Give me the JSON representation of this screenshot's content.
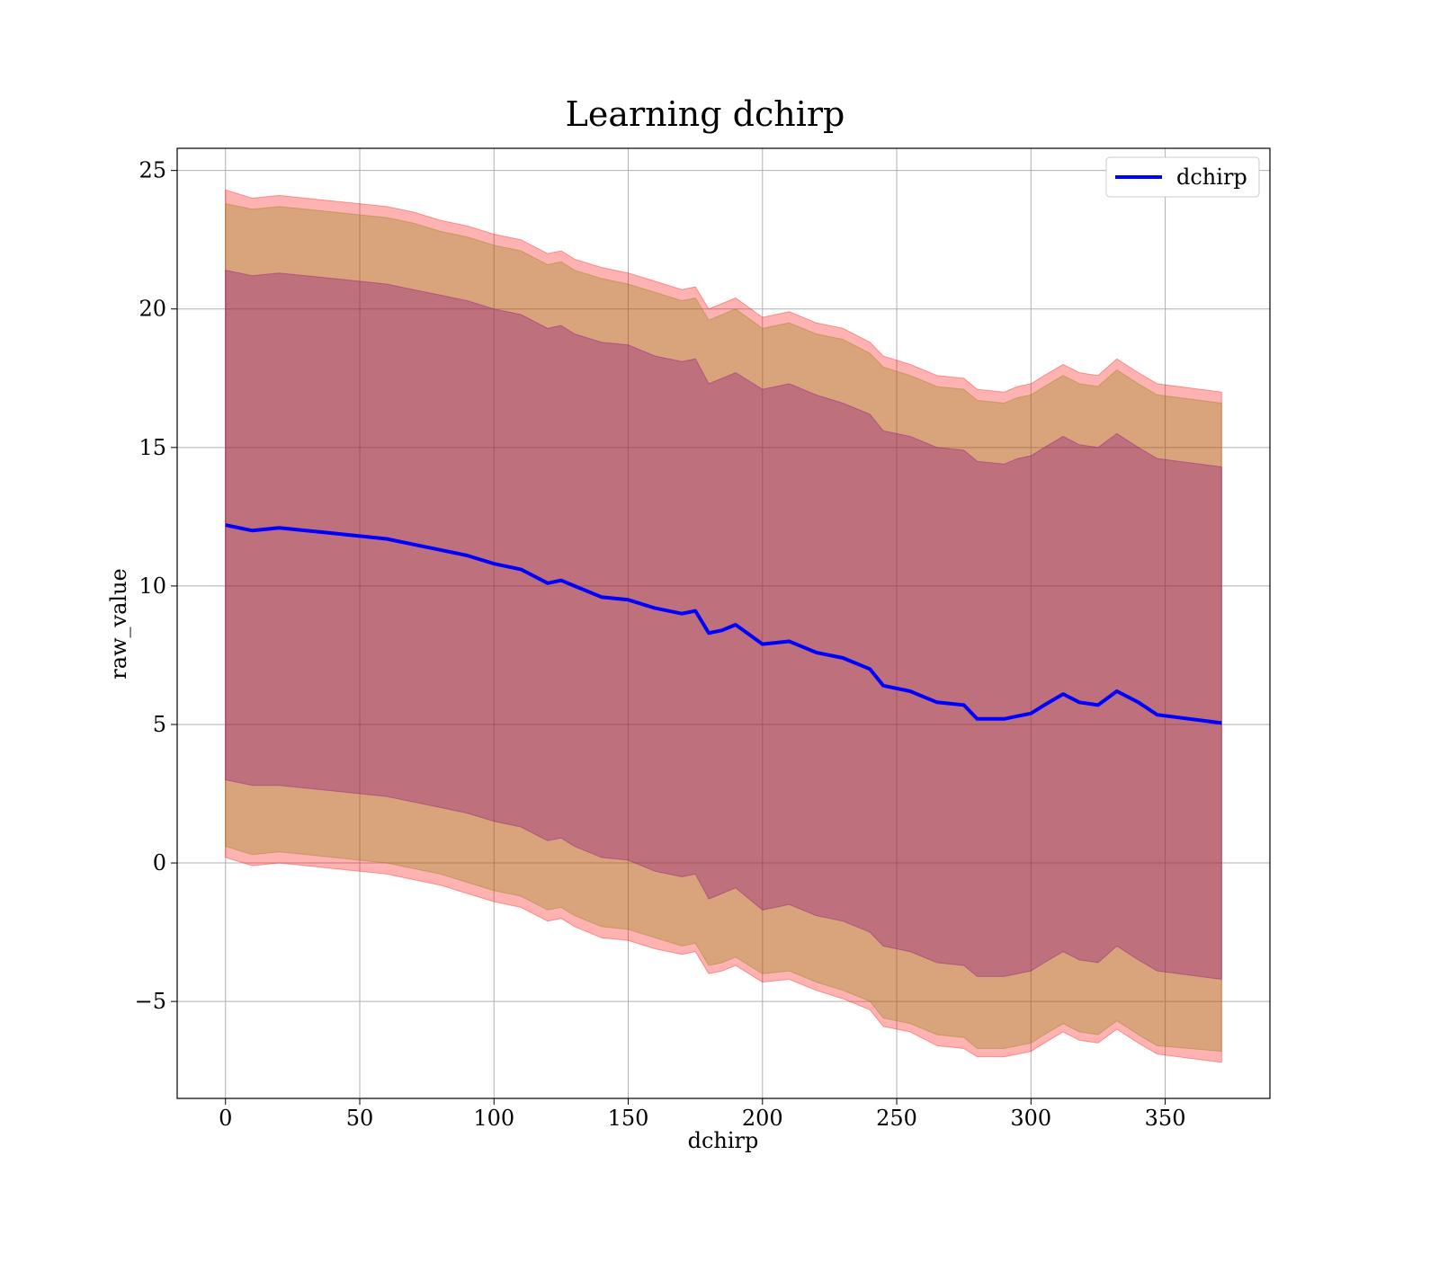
{
  "chart_data": {
    "type": "area",
    "title": "Learning dchirp",
    "xlabel": "dchirp",
    "ylabel": "raw_value",
    "xlim": [
      -18,
      389
    ],
    "ylim": [
      -8.5,
      25.8
    ],
    "xticks": [
      0,
      50,
      100,
      150,
      200,
      250,
      300,
      350
    ],
    "xtick_labels": [
      "0",
      "50",
      "100",
      "150",
      "200",
      "250",
      "300",
      "350"
    ],
    "yticks": [
      -5,
      0,
      5,
      10,
      15,
      20,
      25
    ],
    "ytick_labels": [
      "−5",
      "0",
      "5",
      "10",
      "15",
      "20",
      "25"
    ],
    "grid": true,
    "legend": {
      "position": "top-right",
      "entries": [
        "dchirp"
      ]
    },
    "colors": {
      "mean_line": "#0000ff",
      "outer_band": "#ff0000",
      "middle_band": "#808000",
      "inner_band": "#800080",
      "grid": "#b0b0b0"
    },
    "x": [
      0,
      10,
      20,
      30,
      40,
      50,
      60,
      70,
      80,
      90,
      100,
      110,
      120,
      125,
      130,
      140,
      150,
      160,
      170,
      175,
      180,
      185,
      190,
      200,
      210,
      220,
      230,
      240,
      245,
      255,
      265,
      275,
      280,
      290,
      295,
      300,
      305,
      312,
      318,
      325,
      332,
      340,
      347,
      371
    ],
    "series": [
      {
        "name": "dchirp",
        "role": "mean",
        "values": [
          12.2,
          12.0,
          12.1,
          12.0,
          11.9,
          11.8,
          11.7,
          11.5,
          11.3,
          11.1,
          10.8,
          10.6,
          10.1,
          10.2,
          10.0,
          9.6,
          9.5,
          9.2,
          9.0,
          9.1,
          8.3,
          8.4,
          8.6,
          7.9,
          8.0,
          7.6,
          7.4,
          7.0,
          6.4,
          6.2,
          5.8,
          5.7,
          5.2,
          5.2,
          5.3,
          5.4,
          5.7,
          6.1,
          5.8,
          5.7,
          6.2,
          5.8,
          5.35,
          5.05
        ]
      },
      {
        "name": "",
        "role": "band-1sigma",
        "lower": [
          3.0,
          2.8,
          2.8,
          2.7,
          2.6,
          2.5,
          2.4,
          2.2,
          2.0,
          1.8,
          1.5,
          1.3,
          0.8,
          0.9,
          0.6,
          0.2,
          0.1,
          -0.3,
          -0.5,
          -0.4,
          -1.3,
          -1.1,
          -0.9,
          -1.7,
          -1.5,
          -1.9,
          -2.1,
          -2.5,
          -3.0,
          -3.2,
          -3.6,
          -3.7,
          -4.1,
          -4.1,
          -4.0,
          -3.9,
          -3.6,
          -3.2,
          -3.5,
          -3.6,
          -3.0,
          -3.5,
          -3.9,
          -4.2
        ],
        "upper": [
          21.4,
          21.2,
          21.3,
          21.2,
          21.1,
          21.0,
          20.9,
          20.7,
          20.5,
          20.3,
          20.0,
          19.8,
          19.3,
          19.4,
          19.1,
          18.8,
          18.7,
          18.3,
          18.1,
          18.2,
          17.3,
          17.5,
          17.7,
          17.1,
          17.3,
          16.9,
          16.6,
          16.2,
          15.6,
          15.4,
          15.0,
          14.9,
          14.5,
          14.4,
          14.6,
          14.7,
          15.0,
          15.4,
          15.1,
          15.0,
          15.5,
          15.0,
          14.6,
          14.3
        ]
      },
      {
        "name": "",
        "role": "band-2sigma",
        "lower": [
          0.6,
          0.3,
          0.4,
          0.3,
          0.2,
          0.1,
          -0.0,
          -0.2,
          -0.4,
          -0.7,
          -1.0,
          -1.2,
          -1.7,
          -1.6,
          -1.9,
          -2.3,
          -2.4,
          -2.7,
          -3.0,
          -2.9,
          -3.7,
          -3.6,
          -3.4,
          -4.0,
          -3.9,
          -4.3,
          -4.6,
          -5.0,
          -5.6,
          -5.8,
          -6.2,
          -6.3,
          -6.7,
          -6.7,
          -6.6,
          -6.5,
          -6.2,
          -5.8,
          -6.1,
          -6.2,
          -5.7,
          -6.2,
          -6.6,
          -6.8
        ]
      },
      {
        "name": "",
        "role": "band-2sigma-upper",
        "values": [
          23.8,
          23.6,
          23.7,
          23.6,
          23.5,
          23.4,
          23.3,
          23.1,
          22.8,
          22.6,
          22.3,
          22.1,
          21.6,
          21.7,
          21.4,
          21.1,
          20.9,
          20.6,
          20.3,
          20.4,
          19.6,
          19.8,
          20.0,
          19.3,
          19.5,
          19.1,
          18.9,
          18.4,
          17.9,
          17.6,
          17.2,
          17.1,
          16.7,
          16.6,
          16.8,
          16.9,
          17.2,
          17.6,
          17.3,
          17.2,
          17.8,
          17.3,
          16.9,
          16.6
        ]
      },
      {
        "name": "",
        "role": "band-outer",
        "lower": [
          0.2,
          -0.1,
          0.0,
          -0.1,
          -0.2,
          -0.3,
          -0.4,
          -0.6,
          -0.8,
          -1.1,
          -1.4,
          -1.6,
          -2.1,
          -2.0,
          -2.3,
          -2.7,
          -2.8,
          -3.1,
          -3.3,
          -3.2,
          -4.0,
          -3.9,
          -3.7,
          -4.3,
          -4.2,
          -4.6,
          -4.9,
          -5.3,
          -5.9,
          -6.1,
          -6.6,
          -6.7,
          -7.0,
          -7.0,
          -6.9,
          -6.8,
          -6.5,
          -6.1,
          -6.4,
          -6.5,
          -6.0,
          -6.5,
          -6.9,
          -7.2
        ],
        "upper": [
          24.3,
          24.0,
          24.1,
          24.0,
          23.9,
          23.8,
          23.7,
          23.5,
          23.2,
          23.0,
          22.7,
          22.5,
          22.0,
          22.1,
          21.8,
          21.5,
          21.3,
          21.0,
          20.7,
          20.8,
          20.0,
          20.2,
          20.4,
          19.7,
          19.9,
          19.5,
          19.3,
          18.8,
          18.3,
          18.0,
          17.6,
          17.5,
          17.1,
          17.0,
          17.2,
          17.3,
          17.6,
          18.0,
          17.7,
          17.6,
          18.2,
          17.7,
          17.3,
          17.0
        ]
      }
    ]
  }
}
